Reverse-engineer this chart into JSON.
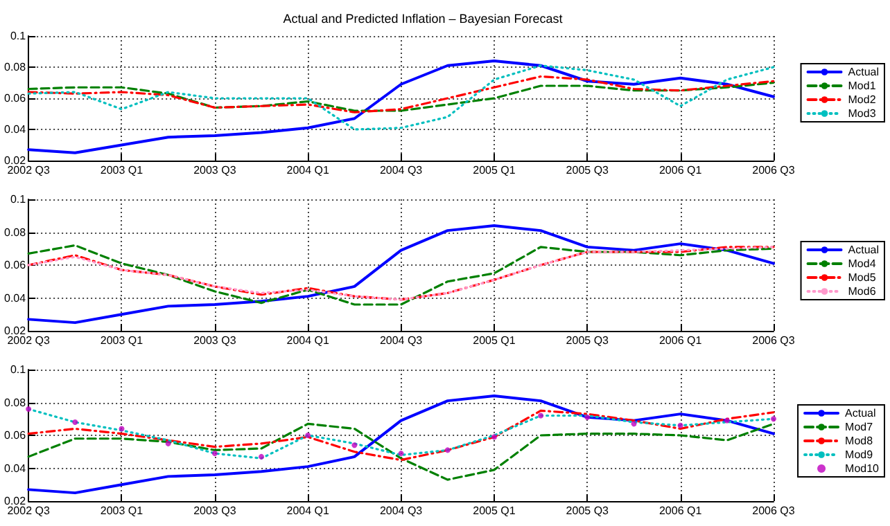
{
  "chart_data": [
    {
      "type": "line",
      "title": "Actual and Predicted Inflation – Bayesian Forecast",
      "categories": [
        "2002 Q3",
        null,
        "2003 Q1",
        null,
        "2003 Q3",
        null,
        "2004 Q1",
        null,
        "2004 Q3",
        null,
        "2005 Q1",
        null,
        "2005 Q3",
        null,
        "2006 Q1",
        null,
        "2006 Q3"
      ],
      "ylim": [
        0.02,
        0.1
      ],
      "yticks": [
        0.02,
        0.04,
        0.06,
        0.08,
        0.1
      ],
      "grid": true,
      "legend": "right",
      "marker": "none",
      "series": [
        {
          "name": "Actual",
          "color": "#0000ff",
          "line_style": "solid",
          "values": [
            0.027,
            0.025,
            0.03,
            0.035,
            0.036,
            0.038,
            0.041,
            0.047,
            0.069,
            0.081,
            0.084,
            0.081,
            0.071,
            0.069,
            0.073,
            0.069,
            0.061
          ]
        },
        {
          "name": "Mod1",
          "color": "#008000",
          "line_style": "dashed",
          "values": [
            0.066,
            0.067,
            0.067,
            0.063,
            0.054,
            0.055,
            0.058,
            0.052,
            0.052,
            0.056,
            0.06,
            0.068,
            0.068,
            0.065,
            0.065,
            0.067,
            0.07
          ]
        },
        {
          "name": "Mod2",
          "color": "#ff0000",
          "line_style": "dashdot",
          "values": [
            0.064,
            0.063,
            0.064,
            0.062,
            0.054,
            0.055,
            0.056,
            0.051,
            0.053,
            0.06,
            0.067,
            0.074,
            0.072,
            0.066,
            0.065,
            0.068,
            0.071
          ]
        },
        {
          "name": "Mod3",
          "color": "#00bfbf",
          "line_style": "dotted",
          "values": [
            0.063,
            0.064,
            0.053,
            0.064,
            0.06,
            0.06,
            0.06,
            0.04,
            0.041,
            0.048,
            0.072,
            0.081,
            0.078,
            0.072,
            0.055,
            0.072,
            0.08
          ]
        }
      ]
    },
    {
      "type": "line",
      "categories": [
        "2002 Q3",
        null,
        "2003 Q1",
        null,
        "2003 Q3",
        null,
        "2004 Q1",
        null,
        "2004 Q3",
        null,
        "2005 Q1",
        null,
        "2005 Q3",
        null,
        "2006 Q1",
        null,
        "2006 Q3"
      ],
      "ylim": [
        0.02,
        0.1
      ],
      "yticks": [
        0.02,
        0.04,
        0.06,
        0.08,
        0.1
      ],
      "grid": true,
      "legend": "right",
      "marker": "none",
      "series": [
        {
          "name": "Actual",
          "color": "#0000ff",
          "line_style": "solid",
          "values": [
            0.027,
            0.025,
            0.03,
            0.035,
            0.036,
            0.038,
            0.041,
            0.047,
            0.069,
            0.081,
            0.084,
            0.081,
            0.071,
            0.069,
            0.073,
            0.069,
            0.061
          ]
        },
        {
          "name": "Mod4",
          "color": "#008000",
          "line_style": "dashed",
          "values": [
            0.067,
            0.072,
            0.061,
            0.054,
            0.044,
            0.037,
            0.045,
            0.036,
            0.036,
            0.05,
            0.055,
            0.071,
            0.068,
            0.068,
            0.066,
            0.069,
            0.07
          ]
        },
        {
          "name": "Mod5",
          "color": "#ff0000",
          "line_style": "dashdot",
          "values": [
            0.06,
            0.066,
            0.057,
            0.054,
            0.047,
            0.042,
            0.046,
            0.041,
            0.039,
            0.043,
            0.051,
            0.06,
            0.068,
            0.068,
            0.068,
            0.071,
            0.071
          ]
        },
        {
          "name": "Mod6",
          "color": "#ff99cc",
          "line_style": "dotted",
          "values": [
            0.06,
            0.065,
            0.057,
            0.054,
            0.047,
            0.043,
            0.045,
            0.041,
            0.039,
            0.043,
            0.051,
            0.06,
            0.068,
            0.068,
            0.069,
            0.07,
            0.071
          ]
        }
      ]
    },
    {
      "type": "line",
      "categories": [
        "2002 Q3",
        null,
        "2003 Q1",
        null,
        "2003 Q3",
        null,
        "2004 Q1",
        null,
        "2004 Q3",
        null,
        "2005 Q1",
        null,
        "2005 Q3",
        null,
        "2006 Q1",
        null,
        "2006 Q3"
      ],
      "ylim": [
        0.02,
        0.1
      ],
      "yticks": [
        0.02,
        0.04,
        0.06,
        0.08,
        0.1
      ],
      "grid": true,
      "legend": "right",
      "marker": "none",
      "series": [
        {
          "name": "Actual",
          "color": "#0000ff",
          "line_style": "solid",
          "values": [
            0.027,
            0.025,
            0.03,
            0.035,
            0.036,
            0.038,
            0.041,
            0.047,
            0.069,
            0.081,
            0.084,
            0.081,
            0.071,
            0.069,
            0.073,
            0.069,
            0.061
          ]
        },
        {
          "name": "Mod7",
          "color": "#008000",
          "line_style": "dashed",
          "values": [
            0.047,
            0.058,
            0.058,
            0.056,
            0.051,
            0.052,
            0.067,
            0.064,
            0.046,
            0.033,
            0.039,
            0.06,
            0.061,
            0.061,
            0.06,
            0.057,
            0.067
          ]
        },
        {
          "name": "Mod8",
          "color": "#ff0000",
          "line_style": "dashdot",
          "values": [
            0.061,
            0.064,
            0.061,
            0.057,
            0.053,
            0.055,
            0.059,
            0.05,
            0.045,
            0.051,
            0.059,
            0.075,
            0.073,
            0.069,
            0.064,
            0.07,
            0.074
          ]
        },
        {
          "name": "Mod9",
          "color": "#00bfbf",
          "line_style": "dotted",
          "values": [
            0.076,
            0.068,
            0.063,
            0.057,
            0.049,
            0.046,
            0.06,
            0.055,
            0.048,
            0.051,
            0.06,
            0.072,
            0.072,
            0.068,
            0.066,
            0.068,
            0.07
          ]
        },
        {
          "name": "Mod10",
          "type": "scatter",
          "marker": "circle",
          "color": "#bf00bf",
          "values": [
            0.076,
            0.068,
            0.064,
            0.055,
            0.049,
            0.047,
            0.06,
            0.054,
            0.049,
            0.051,
            0.059,
            0.072,
            0.071,
            0.067,
            0.066,
            0.069,
            0.07
          ]
        }
      ]
    }
  ]
}
